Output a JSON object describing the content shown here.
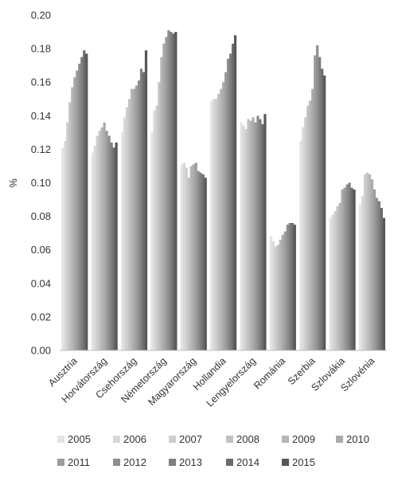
{
  "chart_data": {
    "type": "bar",
    "ylabel": "%",
    "ylim": [
      0,
      0.2
    ],
    "yticks": [
      "0.00",
      "0.02",
      "0.04",
      "0.06",
      "0.08",
      "0.10",
      "0.12",
      "0.14",
      "0.16",
      "0.18",
      "0.20"
    ],
    "grid": false,
    "legend_position": "bottom",
    "categories": [
      "Ausztria",
      "Horvátország",
      "Csehország",
      "Németország",
      "Magyarország",
      "Hollandia",
      "Lengyelország",
      "Románia",
      "Szerbia",
      "Szlovákia",
      "Szlovénia"
    ],
    "series": [
      {
        "name": "2005",
        "color": "#e4e4e4",
        "values": [
          0.121,
          0.118,
          0.13,
          0.13,
          0.111,
          0.149,
          0.136,
          0.068,
          0.125,
          0.079,
          0.087
        ]
      },
      {
        "name": "2006",
        "color": "#d9d9d9",
        "values": [
          0.125,
          0.122,
          0.139,
          0.143,
          0.112,
          0.15,
          0.134,
          0.065,
          0.133,
          0.081,
          0.092
        ]
      },
      {
        "name": "2007",
        "color": "#cecece",
        "values": [
          0.136,
          0.128,
          0.145,
          0.146,
          0.109,
          0.15,
          0.132,
          0.062,
          0.139,
          0.083,
          0.105
        ]
      },
      {
        "name": "2008",
        "color": "#c2c2c2",
        "values": [
          0.148,
          0.131,
          0.15,
          0.16,
          0.103,
          0.153,
          0.138,
          0.063,
          0.146,
          0.086,
          0.106
        ]
      },
      {
        "name": "2009",
        "color": "#b6b6b6",
        "values": [
          0.157,
          0.133,
          0.156,
          0.175,
          0.11,
          0.156,
          0.137,
          0.066,
          0.149,
          0.088,
          0.105
        ]
      },
      {
        "name": "2010",
        "color": "#aaaaaa",
        "values": [
          0.163,
          0.136,
          0.156,
          0.183,
          0.111,
          0.16,
          0.139,
          0.069,
          0.156,
          0.096,
          0.102
        ]
      },
      {
        "name": "2011",
        "color": "#9d9d9d",
        "values": [
          0.167,
          0.131,
          0.158,
          0.187,
          0.112,
          0.166,
          0.136,
          0.071,
          0.176,
          0.097,
          0.096
        ]
      },
      {
        "name": "2012",
        "color": "#8e8e8e",
        "values": [
          0.171,
          0.128,
          0.161,
          0.191,
          0.107,
          0.174,
          0.14,
          0.075,
          0.182,
          0.099,
          0.091
        ]
      },
      {
        "name": "2013",
        "color": "#7e7e7e",
        "values": [
          0.175,
          0.124,
          0.168,
          0.19,
          0.106,
          0.177,
          0.138,
          0.076,
          0.175,
          0.1,
          0.089
        ]
      },
      {
        "name": "2014",
        "color": "#6c6c6c",
        "values": [
          0.179,
          0.121,
          0.166,
          0.189,
          0.105,
          0.183,
          0.135,
          0.076,
          0.168,
          0.097,
          0.085
        ]
      },
      {
        "name": "2015",
        "color": "#585858",
        "values": [
          0.177,
          0.124,
          0.179,
          0.19,
          0.103,
          0.188,
          0.141,
          0.075,
          0.164,
          0.096,
          0.079
        ]
      }
    ]
  }
}
